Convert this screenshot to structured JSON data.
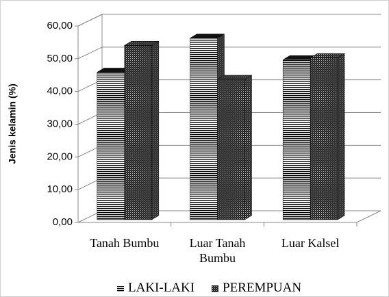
{
  "chart_data": {
    "type": "bar3d",
    "ylabel": "Jenis kelamin (%)",
    "categories": [
      "Tanah Bumbu",
      "Luar Tanah Bumbu",
      "Luar Kalsel"
    ],
    "series": [
      {
        "name": "LAKI-LAKI",
        "color": "#000000",
        "values": [
          45.9,
          56.3,
          49.7
        ]
      },
      {
        "name": "PEREMPUAN",
        "color": "#000000",
        "values": [
          54.1,
          43.7,
          50.3
        ]
      }
    ],
    "ylim": [
      0,
      60
    ],
    "yticks": [
      {
        "value": 0,
        "label": "0,00"
      },
      {
        "value": 10,
        "label": "10,00"
      },
      {
        "value": 20,
        "label": "20,00"
      },
      {
        "value": 30,
        "label": "30,00"
      },
      {
        "value": 40,
        "label": "40,00"
      },
      {
        "value": 50,
        "label": "50,00"
      },
      {
        "value": 60,
        "label": "60,00"
      }
    ],
    "grid": true,
    "legend": "bottom"
  }
}
